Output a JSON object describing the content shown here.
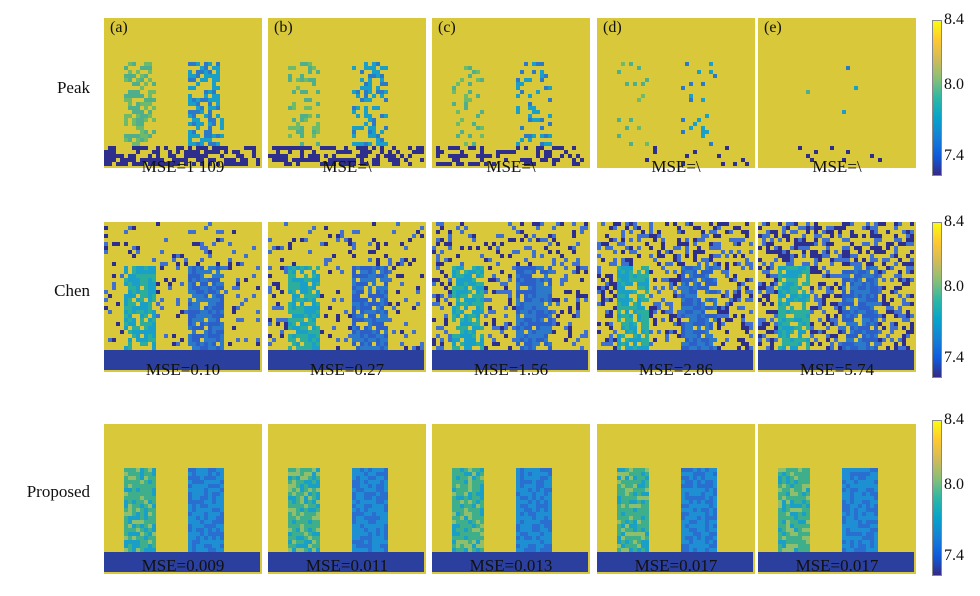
{
  "rows": [
    {
      "label": "Peak",
      "mse": [
        "MSE=1 109",
        "MSE=\\",
        "MSE=\\",
        "MSE=\\",
        "MSE=\\"
      ]
    },
    {
      "label": "Chen",
      "mse": [
        "MSE=0.10",
        "MSE=0.27",
        "MSE=1.56",
        "MSE=2.86",
        "MSE=5.74"
      ]
    },
    {
      "label": "Proposed",
      "mse": [
        "MSE=0.009",
        "MSE=0.011",
        "MSE=0.013",
        "MSE=0.017",
        "MSE=0.017"
      ]
    }
  ],
  "column_letters": [
    "(a)",
    "(b)",
    "(c)",
    "(d)",
    "(e)"
  ],
  "colorbar": {
    "ticks": [
      "8.4",
      "8.0",
      "7.4"
    ],
    "colormap": [
      "#352a87",
      "#0f5cdd",
      "#1481d6",
      "#06a4ca",
      "#2eb7a4",
      "#87bf77",
      "#d1bb59",
      "#fec832",
      "#f9fb0e"
    ]
  },
  "colors": {
    "background_level": "#d9c83a",
    "low": "#2e2f8c",
    "mid": "#1aa0c8",
    "high": "#6dbb6a"
  }
}
